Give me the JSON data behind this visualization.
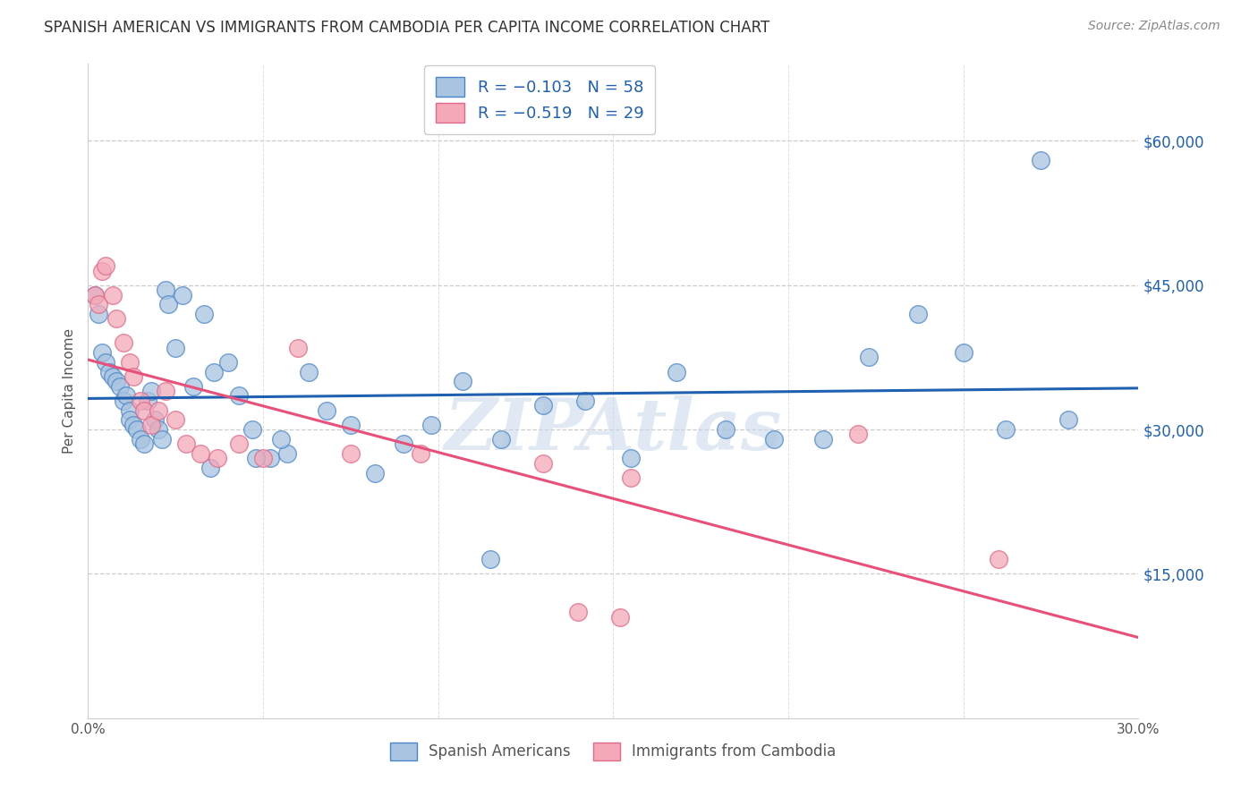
{
  "title": "SPANISH AMERICAN VS IMMIGRANTS FROM CAMBODIA PER CAPITA INCOME CORRELATION CHART",
  "source": "Source: ZipAtlas.com",
  "ylabel": "Per Capita Income",
  "yticks": [
    0,
    15000,
    30000,
    45000,
    60000
  ],
  "ytick_labels": [
    "",
    "$15,000",
    "$30,000",
    "$45,000",
    "$60,000"
  ],
  "xlim": [
    0.0,
    0.3
  ],
  "ylim": [
    0,
    68000
  ],
  "legend_blue_label": "R = −0.103   N = 58",
  "legend_pink_label": "R = −0.519   N = 29",
  "blue_color": "#a8c4e0",
  "pink_color": "#f4a8b8",
  "blue_edge_color": "#4a86c8",
  "pink_edge_color": "#e06888",
  "blue_line_color": "#2060b0",
  "pink_line_color": "#e8507a",
  "watermark": "ZIPAtlas",
  "watermark_color": "#c8d8ea",
  "blue_x": [
    0.002,
    0.003,
    0.004,
    0.005,
    0.006,
    0.007,
    0.008,
    0.009,
    0.01,
    0.011,
    0.012,
    0.012,
    0.013,
    0.014,
    0.015,
    0.016,
    0.017,
    0.018,
    0.019,
    0.02,
    0.021,
    0.022,
    0.023,
    0.025,
    0.027,
    0.03,
    0.033,
    0.036,
    0.04,
    0.043,
    0.047,
    0.052,
    0.057,
    0.063,
    0.068,
    0.075,
    0.082,
    0.09,
    0.098,
    0.107,
    0.118,
    0.13,
    0.142,
    0.155,
    0.168,
    0.182,
    0.196,
    0.21,
    0.223,
    0.237,
    0.25,
    0.262,
    0.272,
    0.28,
    0.055,
    0.115,
    0.035,
    0.048
  ],
  "blue_y": [
    44000,
    42000,
    38000,
    37000,
    36000,
    35500,
    35000,
    34500,
    33000,
    33500,
    32000,
    31000,
    30500,
    30000,
    29000,
    28500,
    33000,
    34000,
    31000,
    30000,
    29000,
    44500,
    43000,
    38500,
    44000,
    34500,
    42000,
    36000,
    37000,
    33500,
    30000,
    27000,
    27500,
    36000,
    32000,
    30500,
    25500,
    28500,
    30500,
    35000,
    29000,
    32500,
    33000,
    27000,
    36000,
    30000,
    29000,
    29000,
    37500,
    42000,
    38000,
    30000,
    58000,
    31000,
    29000,
    16500,
    26000,
    27000
  ],
  "pink_x": [
    0.002,
    0.003,
    0.004,
    0.005,
    0.007,
    0.008,
    0.01,
    0.012,
    0.013,
    0.015,
    0.016,
    0.018,
    0.02,
    0.022,
    0.025,
    0.028,
    0.032,
    0.037,
    0.043,
    0.05,
    0.06,
    0.075,
    0.095,
    0.13,
    0.14,
    0.152,
    0.22,
    0.26,
    0.155
  ],
  "pink_y": [
    44000,
    43000,
    46500,
    47000,
    44000,
    41500,
    39000,
    37000,
    35500,
    33000,
    32000,
    30500,
    32000,
    34000,
    31000,
    28500,
    27500,
    27000,
    28500,
    27000,
    38500,
    27500,
    27500,
    26500,
    11000,
    10500,
    29500,
    16500,
    25000
  ],
  "legend_label_blue": "Spanish Americans",
  "legend_label_pink": "Immigrants from Cambodia"
}
